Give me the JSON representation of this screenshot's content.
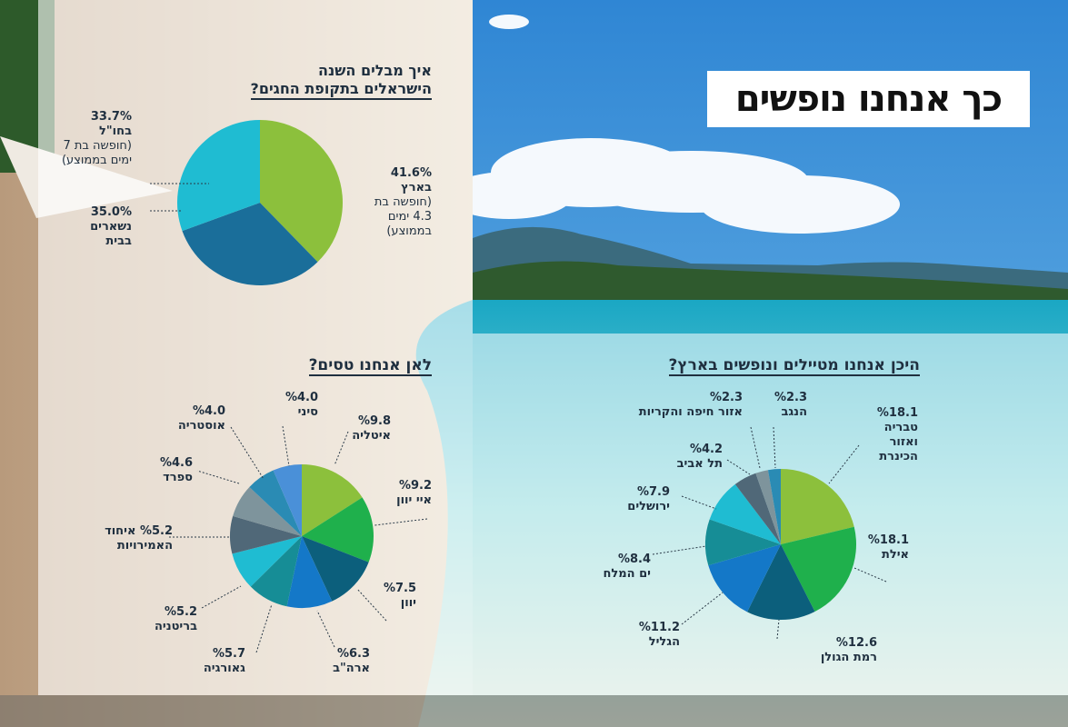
{
  "title": "כך אנחנו נופשים",
  "colors": {
    "sky": "#3d8fd6",
    "sea": "#2fb4c8",
    "sand": "#d9c4a6",
    "text": "#1f2f3f"
  },
  "chart_data": [
    {
      "type": "pie",
      "title_lines": [
        "איך מבלים השנה",
        "הישראלים בתקופת החגים?"
      ],
      "slices": [
        {
          "name": "בארץ",
          "value": 41.6,
          "pct_text": "41.6%",
          "note_lines": [
            "(חופשה בת",
            "4.3 ימים",
            "בממוצע)"
          ],
          "color": "#8cc03c"
        },
        {
          "name": "נשארים בבית",
          "value": 35.0,
          "pct_text": "35.0%",
          "name_lines": [
            "נשארים",
            "בבית"
          ],
          "note_lines": [],
          "color": "#1a6e9a"
        },
        {
          "name": "בחו\"ל",
          "value": 33.7,
          "pct_text": "33.7%",
          "note_lines": [
            "(חופשה בת 7",
            "ימים בממוצע)"
          ],
          "color": "#1fbcd2"
        }
      ]
    },
    {
      "type": "pie",
      "title": "לאן אנחנו טסים?",
      "slices": [
        {
          "name": "איטליה",
          "value": 9.8,
          "pct_text": "%9.8",
          "color": "#8cc03c"
        },
        {
          "name": "איי יוון",
          "value": 9.2,
          "pct_text": "%9.2",
          "color": "#1fb04c"
        },
        {
          "name": "יוון",
          "value": 7.5,
          "pct_text": "%7.5",
          "color": "#0c5f7c"
        },
        {
          "name": "ארה\"ב",
          "value": 6.3,
          "pct_text": "%6.3",
          "color": "#1478c8"
        },
        {
          "name": "גאורגיה",
          "value": 5.7,
          "pct_text": "%5.7",
          "color": "#168d96"
        },
        {
          "name": "בריטניה",
          "value": 5.2,
          "pct_text": "%5.2",
          "color": "#1fbcd2"
        },
        {
          "name": "איחוד האמירויות",
          "value": 5.2,
          "pct_text": "%5.2",
          "color": "#506878"
        },
        {
          "name": "ספרד",
          "value": 4.6,
          "pct_text": "%4.6",
          "color": "#7e949c"
        },
        {
          "name": "אוסטריה",
          "value": 4.0,
          "pct_text": "%4.0",
          "color": "#2a8bb4"
        },
        {
          "name": "סיני",
          "value": 4.0,
          "pct_text": "%4.0",
          "color": "#4a90d8"
        }
      ]
    },
    {
      "type": "pie",
      "title": "היכן אנחנו מטיילים ונופשים בארץ?",
      "slices": [
        {
          "name": "טבריה ואזור הכינרת",
          "name_lines": [
            "טבריה",
            "ואזור",
            "הכינרת"
          ],
          "value": 18.1,
          "pct_text": "%18.1",
          "color": "#8cc03c"
        },
        {
          "name": "אילת",
          "value": 18.1,
          "pct_text": "%18.1",
          "color": "#1fb04c"
        },
        {
          "name": "רמת הגולן",
          "value": 12.6,
          "pct_text": "%12.6",
          "color": "#0c5f7c"
        },
        {
          "name": "הגליל",
          "value": 11.2,
          "pct_text": "%11.2",
          "color": "#1478c8"
        },
        {
          "name": "ים המלח",
          "value": 8.4,
          "pct_text": "%8.4",
          "color": "#168d96"
        },
        {
          "name": "ירושלים",
          "value": 7.9,
          "pct_text": "%7.9",
          "color": "#1fbcd2"
        },
        {
          "name": "תל אביב",
          "value": 4.2,
          "pct_text": "%4.2",
          "color": "#506878"
        },
        {
          "name": "אזור חיפה והקריות",
          "value": 2.3,
          "pct_text": "%2.3",
          "color": "#7e949c"
        },
        {
          "name": "הנגב",
          "value": 2.3,
          "pct_text": "%2.3",
          "color": "#2a8bb4"
        }
      ]
    }
  ]
}
